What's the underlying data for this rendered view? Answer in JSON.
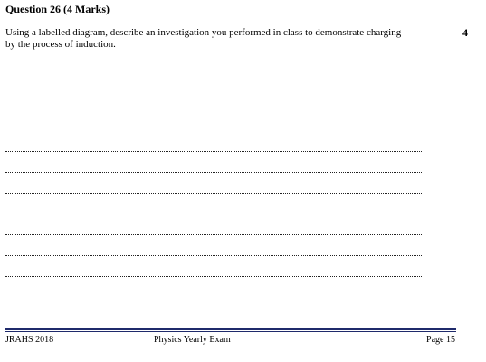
{
  "question": {
    "title": "Question 26 (4 Marks)",
    "text": "Using a labelled diagram, describe an investigation you performed in class to demonstrate charging by the process of induction.",
    "marks": "4"
  },
  "answer": {
    "line_count": 7
  },
  "footer": {
    "left": "JRAHS 2018",
    "center": "Physics Yearly Exam",
    "right": "Page 15"
  }
}
